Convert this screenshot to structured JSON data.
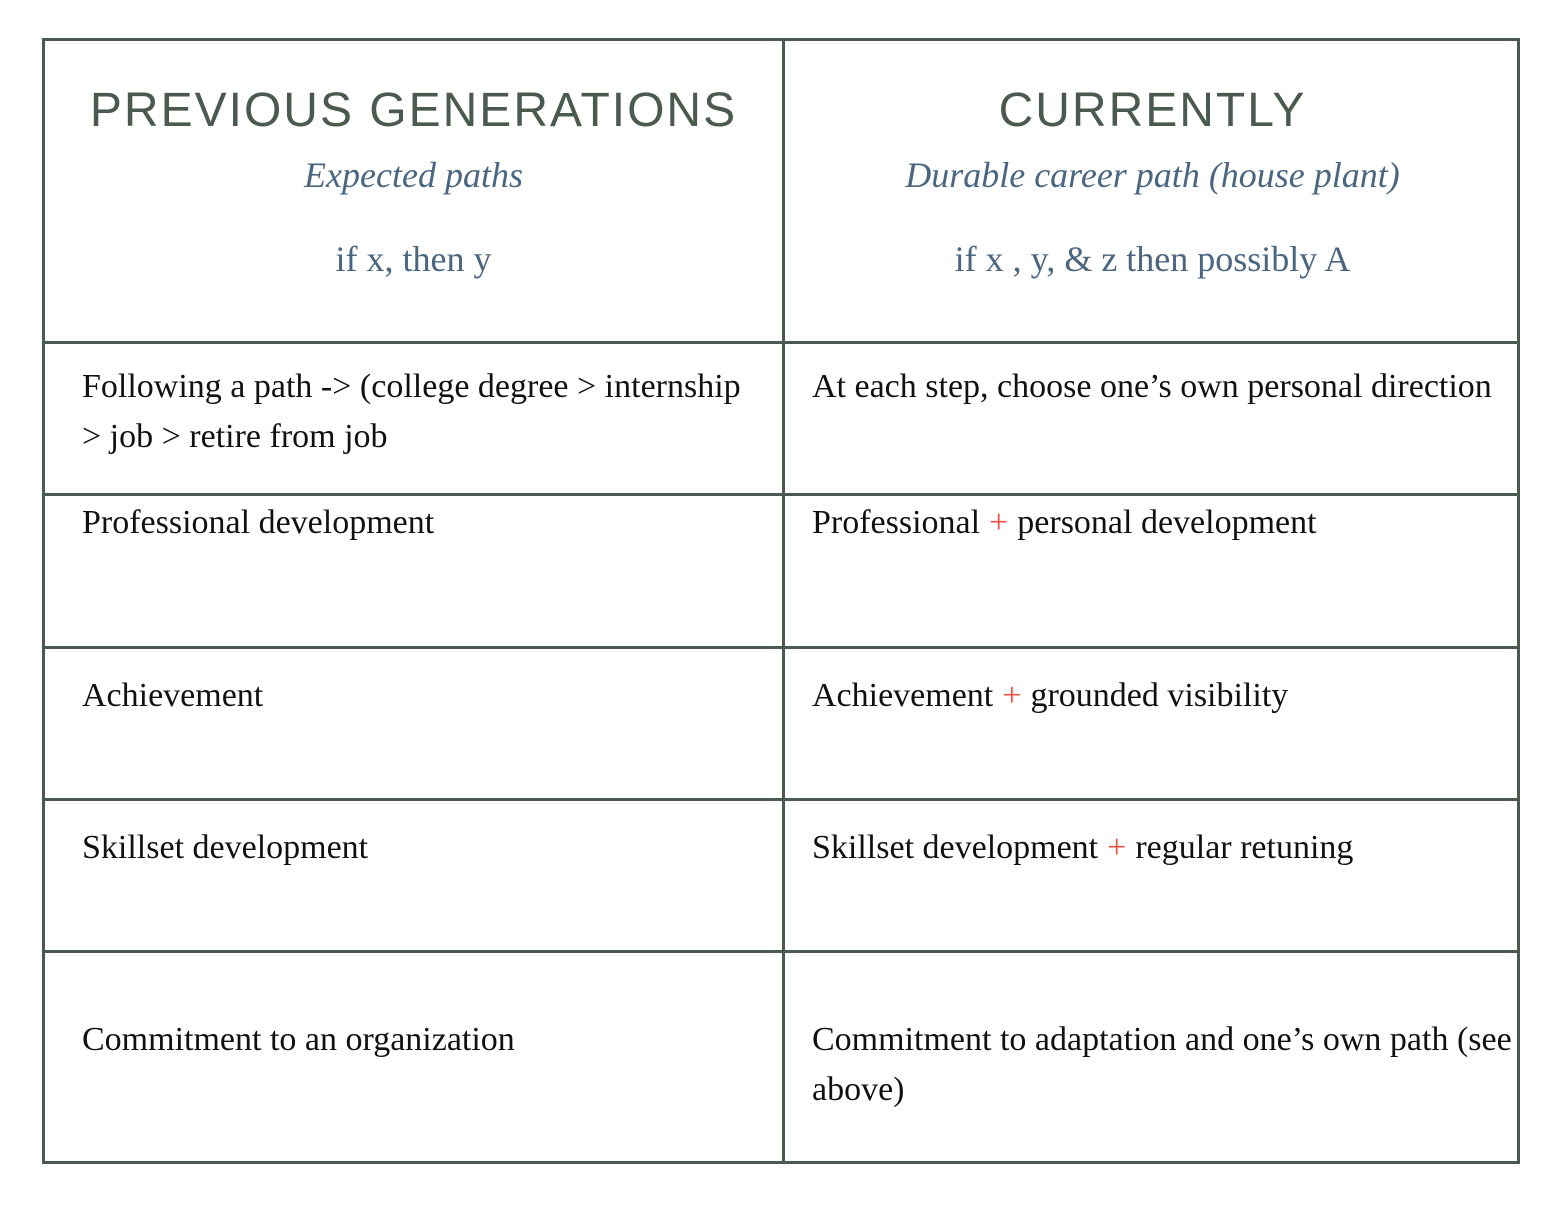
{
  "table": {
    "header": [
      {
        "title": "PREVIOUS GENERATIONS",
        "subtitle": "Expected paths",
        "formula": "if x, then y"
      },
      {
        "title": "CURRENTLY",
        "subtitle": "Durable career path (house plant)",
        "formula": "if x , y, & z then possibly A"
      }
    ],
    "rows": [
      {
        "left": "Following a path -> (college degree > internship > job > retire from job",
        "right": [
          {
            "text": "At each step, choose one’s own personal direction"
          }
        ]
      },
      {
        "left": "Professional development",
        "right": [
          {
            "text": "Professional"
          },
          {
            "text": "+",
            "accent": true
          },
          {
            "text": "personal development"
          }
        ]
      },
      {
        "left": "Achievement",
        "right": [
          {
            "text": "Achievement"
          },
          {
            "text": "+",
            "accent": true
          },
          {
            "text": "grounded visibility"
          }
        ]
      },
      {
        "left": "Skillset development",
        "right": [
          {
            "text": "Skillset development"
          },
          {
            "text": "+",
            "accent": true
          },
          {
            "text": "regular retuning"
          }
        ]
      },
      {
        "left": "Commitment to an organization",
        "right": [
          {
            "text": "Commitment to adaptation and one’s own path (see above)"
          }
        ]
      }
    ]
  }
}
